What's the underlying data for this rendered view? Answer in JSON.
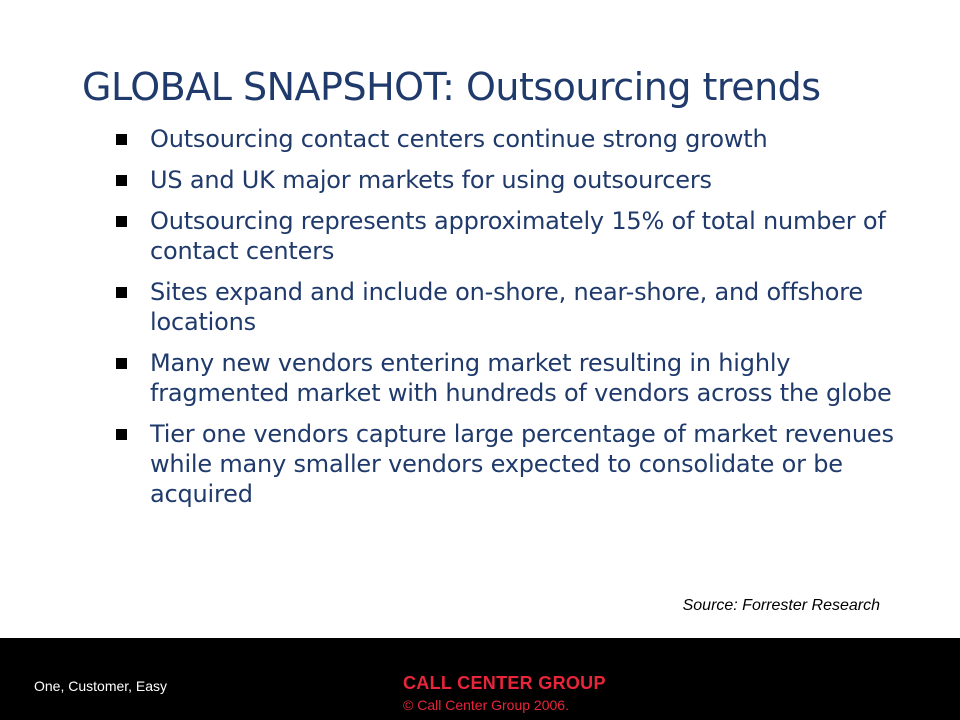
{
  "slide": {
    "title": "GLOBAL SNAPSHOT: Outsourcing trends",
    "bullets": [
      "Outsourcing contact centers continue strong growth",
      "US and UK major markets for using outsourcers",
      "Outsourcing represents approximately 15% of total number of contact centers",
      "Sites expand and include on-shore, near-shore, and offshore locations",
      "Many new vendors entering market resulting in highly fragmented market with hundreds of vendors across the globe",
      "Tier one vendors capture large percentage of market revenues while many smaller vendors expected to consolidate or be acquired"
    ],
    "source": "Source: Forrester Research"
  },
  "footer": {
    "tagline": "One, Customer, Easy",
    "company": "CALL CENTER GROUP",
    "copyright": "© Call Center Group 2006."
  },
  "colors": {
    "title": "#1f3a6b",
    "text": "#1f3a6b",
    "footer_background": "#000000",
    "brand_red": "#e8253a"
  }
}
